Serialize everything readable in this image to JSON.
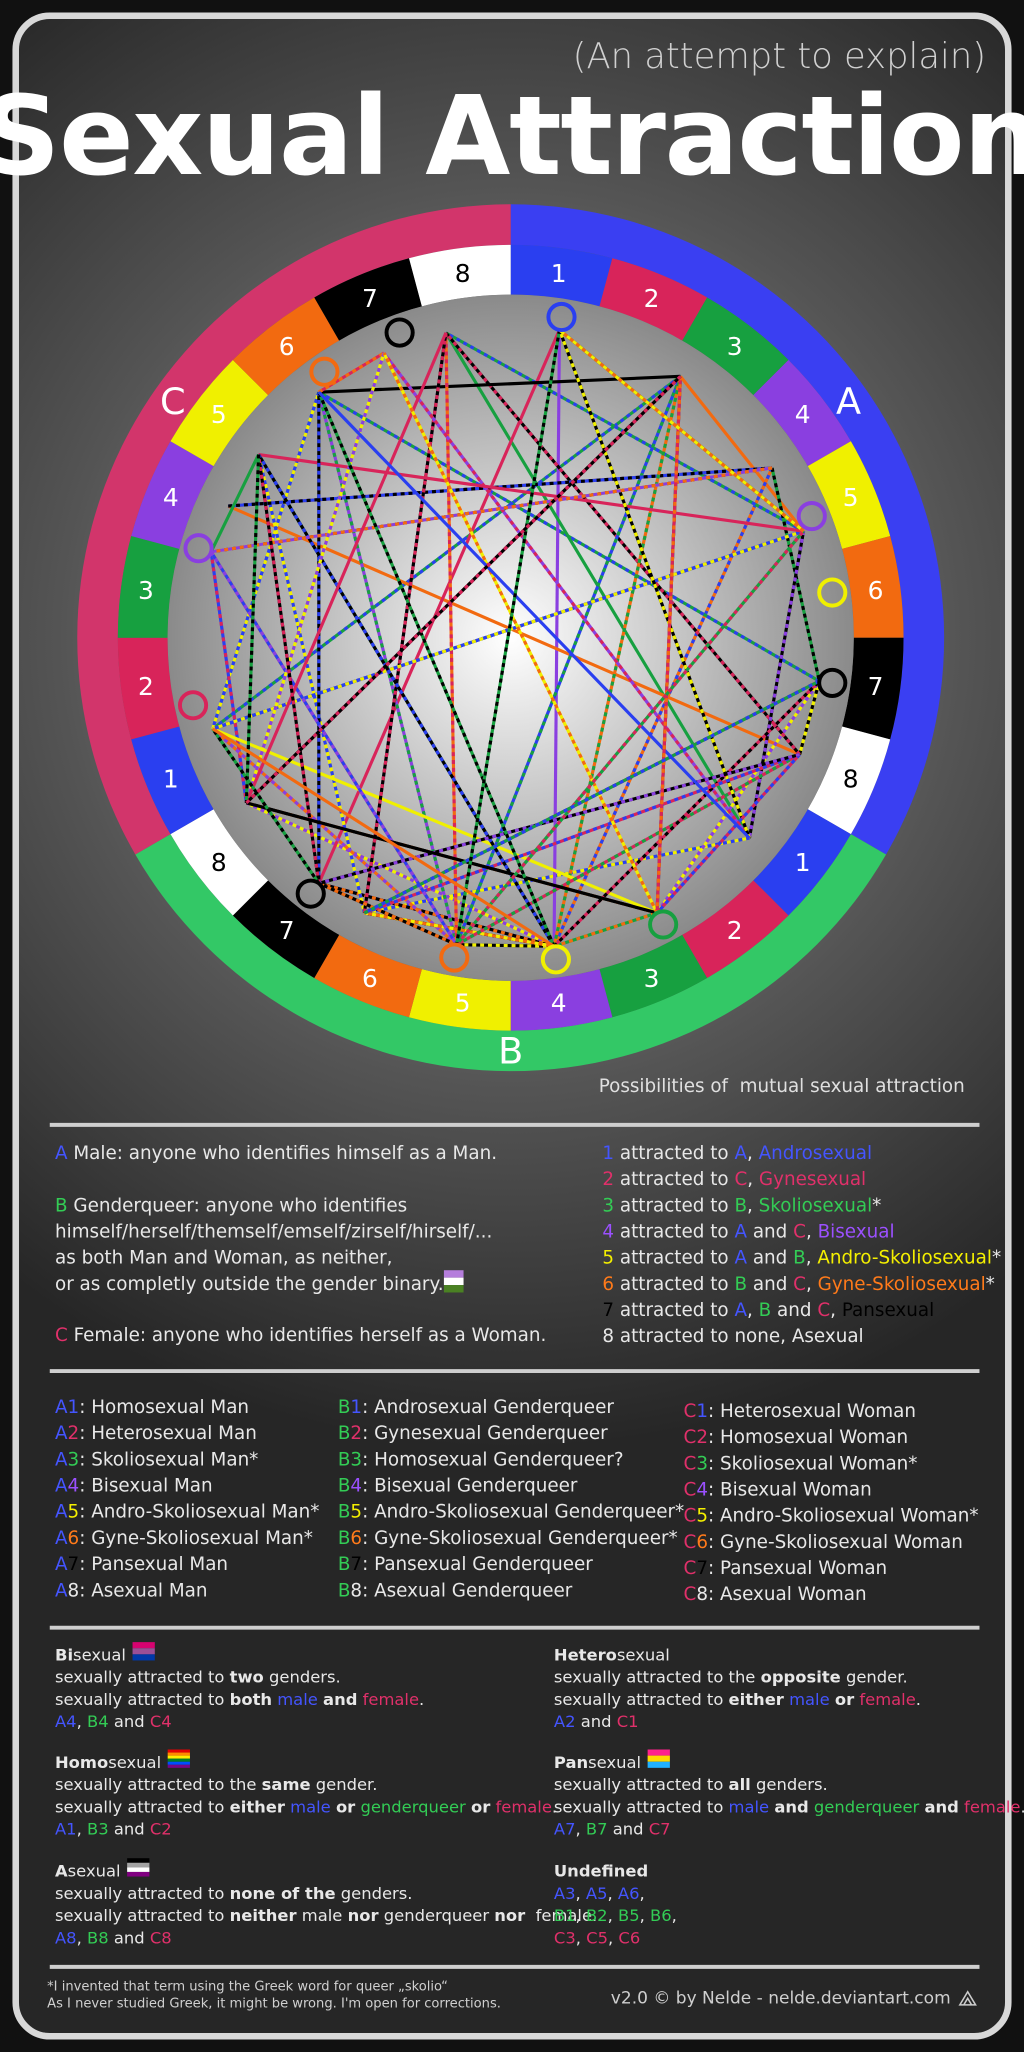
{
  "header": {
    "subtitle": "(An attempt to explain)",
    "title": "Sexual Attraction"
  },
  "palette": {
    "w": "#e8e8e8",
    "a": "#4455ff",
    "b": "#33cc55",
    "c": "#e0306a",
    "p": "#9b50ff",
    "y": "#f5f000",
    "o": "#ff7a1a",
    "k": "#000000"
  },
  "wheel": {
    "sections": [
      {
        "letter": "A",
        "color": "#3a3ff2"
      },
      {
        "letter": "B",
        "color": "#33c866"
      },
      {
        "letter": "C",
        "color": "#d2356b"
      }
    ],
    "segments": [
      {
        "label": "1",
        "color": "#2a3ff0"
      },
      {
        "label": "2",
        "color": "#d8245a"
      },
      {
        "label": "3",
        "color": "#17a040"
      },
      {
        "label": "4",
        "color": "#8a3fe0"
      },
      {
        "label": "5",
        "color": "#f0f000"
      },
      {
        "label": "6",
        "color": "#f26a10"
      },
      {
        "label": "7",
        "color": "#000000"
      },
      {
        "label": "8",
        "color": "#ffffff"
      }
    ],
    "caption": "Possibilities of  mutual sexual attraction"
  },
  "definitions": {
    "lines": [
      [
        [
          "A",
          "a"
        ],
        [
          " Male: anyone who identifies himself as a Man.",
          "w"
        ]
      ],
      [
        [
          "B",
          "b"
        ],
        [
          " Genderqueer: anyone who identifies",
          "w"
        ]
      ],
      [
        [
          "himself/herself/themself/emself/zirself/hirself/...",
          "w"
        ]
      ],
      [
        [
          "as both Man and Woman, as neither,",
          "w"
        ]
      ],
      [
        [
          "or as completly outside the gender binary.",
          "w"
        ]
      ],
      [
        [
          "C",
          "c"
        ],
        [
          " Female: anyone who identifies herself as a Woman.",
          "w"
        ]
      ]
    ],
    "flag": [
      "#b57edc",
      "#ffffff",
      "#4a8123"
    ]
  },
  "legend": [
    [
      [
        "1",
        "a"
      ],
      [
        " attracted to ",
        "w"
      ],
      [
        "A",
        "a"
      ],
      [
        ", ",
        "w"
      ],
      [
        "Androsexual",
        "a"
      ]
    ],
    [
      [
        "2",
        "c"
      ],
      [
        " attracted to ",
        "w"
      ],
      [
        "C",
        "c"
      ],
      [
        ", ",
        "w"
      ],
      [
        "Gynesexual",
        "c"
      ]
    ],
    [
      [
        "3",
        "b"
      ],
      [
        " attracted to ",
        "w"
      ],
      [
        "B",
        "b"
      ],
      [
        ", ",
        "w"
      ],
      [
        "Skoliosexual",
        "b"
      ],
      [
        "*",
        "w"
      ]
    ],
    [
      [
        "4",
        "p"
      ],
      [
        " attracted to ",
        "w"
      ],
      [
        "A",
        "a"
      ],
      [
        " and ",
        "w"
      ],
      [
        "C",
        "c"
      ],
      [
        ", ",
        "w"
      ],
      [
        "Bisexual",
        "p"
      ]
    ],
    [
      [
        "5",
        "y"
      ],
      [
        " attracted to ",
        "w"
      ],
      [
        "A",
        "a"
      ],
      [
        " and ",
        "w"
      ],
      [
        "B",
        "b"
      ],
      [
        ", ",
        "w"
      ],
      [
        "Andro-Skoliosexual",
        "y"
      ],
      [
        "*",
        "w"
      ]
    ],
    [
      [
        "6",
        "o"
      ],
      [
        " attracted to ",
        "w"
      ],
      [
        "B",
        "b"
      ],
      [
        " and ",
        "w"
      ],
      [
        "C",
        "c"
      ],
      [
        ", ",
        "w"
      ],
      [
        "Gyne-Skoliosexual",
        "o"
      ],
      [
        "*",
        "w"
      ]
    ],
    [
      [
        "7",
        "k"
      ],
      [
        " attracted to ",
        "w"
      ],
      [
        "A",
        "a"
      ],
      [
        ", ",
        "w"
      ],
      [
        "B",
        "b"
      ],
      [
        " and ",
        "w"
      ],
      [
        "C",
        "c"
      ],
      [
        ", ",
        "w"
      ],
      [
        "Pansexual",
        "k"
      ]
    ],
    [
      [
        "8",
        "w"
      ],
      [
        " attracted to none, ",
        "w"
      ],
      [
        "Asexual",
        "w"
      ]
    ]
  ],
  "types": [
    [
      [
        [
          "A",
          "a"
        ],
        [
          "1",
          "a"
        ],
        [
          ": Homosexual Man",
          "w"
        ]
      ],
      [
        [
          "A",
          "a"
        ],
        [
          "2",
          "c"
        ],
        [
          ": Heterosexual Man",
          "w"
        ]
      ],
      [
        [
          "A",
          "a"
        ],
        [
          "3",
          "b"
        ],
        [
          ": Skoliosexual Man*",
          "w"
        ]
      ],
      [
        [
          "A",
          "a"
        ],
        [
          "4",
          "p"
        ],
        [
          ": Bisexual Man",
          "w"
        ]
      ],
      [
        [
          "A",
          "a"
        ],
        [
          "5",
          "y"
        ],
        [
          ": Andro-Skoliosexual Man*",
          "w"
        ]
      ],
      [
        [
          "A",
          "a"
        ],
        [
          "6",
          "o"
        ],
        [
          ": Gyne-Skoliosexual Man*",
          "w"
        ]
      ],
      [
        [
          "A",
          "a"
        ],
        [
          "7",
          "k"
        ],
        [
          ": Pansexual Man",
          "w"
        ]
      ],
      [
        [
          "A",
          "a"
        ],
        [
          "8",
          "w"
        ],
        [
          ": Asexual Man",
          "w"
        ]
      ]
    ],
    [
      [
        [
          "B",
          "b"
        ],
        [
          "1",
          "a"
        ],
        [
          ": Androsexual Genderqueer",
          "w"
        ]
      ],
      [
        [
          "B",
          "b"
        ],
        [
          "2",
          "c"
        ],
        [
          ": Gynesexual Genderqueer",
          "w"
        ]
      ],
      [
        [
          "B",
          "b"
        ],
        [
          "3",
          "b"
        ],
        [
          ": Homosexual Genderqueer?",
          "w"
        ]
      ],
      [
        [
          "B",
          "b"
        ],
        [
          "4",
          "p"
        ],
        [
          ": Bisexual Genderqueer",
          "w"
        ]
      ],
      [
        [
          "B",
          "b"
        ],
        [
          "5",
          "y"
        ],
        [
          ": Andro-Skoliosexual Genderqueer*",
          "w"
        ]
      ],
      [
        [
          "B",
          "b"
        ],
        [
          "6",
          "o"
        ],
        [
          ": Gyne-Skoliosexual Genderqueer*",
          "w"
        ]
      ],
      [
        [
          "B",
          "b"
        ],
        [
          "7",
          "k"
        ],
        [
          ": Pansexual Genderqueer",
          "w"
        ]
      ],
      [
        [
          "B",
          "b"
        ],
        [
          "8",
          "w"
        ],
        [
          ": Asexual Genderqueer",
          "w"
        ]
      ]
    ],
    [
      [
        [
          "C",
          "c"
        ],
        [
          "1",
          "a"
        ],
        [
          ": Heterosexual Woman",
          "w"
        ]
      ],
      [
        [
          "C",
          "c"
        ],
        [
          "2",
          "c"
        ],
        [
          ": Homosexual Woman",
          "w"
        ]
      ],
      [
        [
          "C",
          "c"
        ],
        [
          "3",
          "b"
        ],
        [
          ": Skoliosexual Woman*",
          "w"
        ]
      ],
      [
        [
          "C",
          "c"
        ],
        [
          "4",
          "p"
        ],
        [
          ": Bisexual Woman",
          "w"
        ]
      ],
      [
        [
          "C",
          "c"
        ],
        [
          "5",
          "y"
        ],
        [
          ": Andro-Skoliosexual Woman*",
          "w"
        ]
      ],
      [
        [
          "C",
          "c"
        ],
        [
          "6",
          "o"
        ],
        [
          ": Gyne-Skoliosexual Woman",
          "w"
        ]
      ],
      [
        [
          "C",
          "c"
        ],
        [
          "7",
          "k"
        ],
        [
          ": Pansexual Woman",
          "w"
        ]
      ],
      [
        [
          "C",
          "c"
        ],
        [
          "8",
          "w"
        ],
        [
          ": Asexual Woman",
          "w"
        ]
      ]
    ]
  ],
  "categories": [
    {
      "heading": [
        [
          "Bi",
          "w",
          true
        ],
        [
          "sexual",
          "w"
        ]
      ],
      "flag": [
        "#d60270",
        "#9b4f96",
        "#0038a8"
      ],
      "lines": [
        [
          [
            "sexually attracted to ",
            "w"
          ],
          [
            "two",
            "w",
            true
          ],
          [
            " genders.",
            "w"
          ]
        ],
        [
          [
            "sexually attracted to ",
            "w"
          ],
          [
            "both",
            "w",
            true
          ],
          [
            " ",
            "w"
          ],
          [
            "male",
            "a"
          ],
          [
            " ",
            "w"
          ],
          [
            "and",
            "w",
            true
          ],
          [
            " ",
            "w"
          ],
          [
            "female",
            "c"
          ],
          [
            ".",
            "w"
          ]
        ],
        [
          [
            "A4",
            "a"
          ],
          [
            ", ",
            "w"
          ],
          [
            "B4",
            "b"
          ],
          [
            " and ",
            "w"
          ],
          [
            "C4",
            "c"
          ]
        ]
      ]
    },
    {
      "heading": [
        [
          "Homo",
          "w",
          true
        ],
        [
          "sexual",
          "w"
        ]
      ],
      "flag": [
        "#e40303",
        "#ff8c00",
        "#ffed00",
        "#008026",
        "#004dff",
        "#750787"
      ],
      "lines": [
        [
          [
            "sexually attracted to the ",
            "w"
          ],
          [
            "same",
            "w",
            true
          ],
          [
            " gender.",
            "w"
          ]
        ],
        [
          [
            "sexually attracted to ",
            "w"
          ],
          [
            "either",
            "w",
            true
          ],
          [
            " ",
            "w"
          ],
          [
            "male",
            "a"
          ],
          [
            " ",
            "w"
          ],
          [
            "or",
            "w",
            true
          ],
          [
            " ",
            "w"
          ],
          [
            "genderqueer",
            "b"
          ],
          [
            " ",
            "w"
          ],
          [
            "or",
            "w",
            true
          ],
          [
            " ",
            "w"
          ],
          [
            "female",
            "c"
          ],
          [
            ".",
            "w"
          ]
        ],
        [
          [
            "A1",
            "a"
          ],
          [
            ", ",
            "w"
          ],
          [
            "B3",
            "b"
          ],
          [
            " and ",
            "w"
          ],
          [
            "C2",
            "c"
          ]
        ]
      ]
    },
    {
      "heading": [
        [
          "A",
          "w",
          true
        ],
        [
          "sexual",
          "w"
        ]
      ],
      "flag": [
        "#000000",
        "#a3a3a3",
        "#ffffff",
        "#800080"
      ],
      "lines": [
        [
          [
            "sexually attracted to ",
            "w"
          ],
          [
            "none of the",
            "w",
            true
          ],
          [
            " genders.",
            "w"
          ]
        ],
        [
          [
            "sexually attracted to ",
            "w"
          ],
          [
            "neither",
            "w",
            true
          ],
          [
            " male ",
            "w"
          ],
          [
            "nor",
            "w",
            true
          ],
          [
            " genderqueer ",
            "w"
          ],
          [
            "nor",
            "w",
            true
          ],
          [
            "  female.",
            "w"
          ]
        ],
        [
          [
            "A8",
            "a"
          ],
          [
            ", ",
            "w"
          ],
          [
            "B8",
            "b"
          ],
          [
            " and ",
            "w"
          ],
          [
            "C8",
            "c"
          ]
        ]
      ]
    },
    {
      "heading": [
        [
          "Hetero",
          "w",
          true
        ],
        [
          "sexual",
          "w"
        ]
      ],
      "lines": [
        [
          [
            "sexually attracted to the ",
            "w"
          ],
          [
            "opposite",
            "w",
            true
          ],
          [
            " gender.",
            "w"
          ]
        ],
        [
          [
            "sexually attracted to ",
            "w"
          ],
          [
            "either",
            "w",
            true
          ],
          [
            " ",
            "w"
          ],
          [
            "male",
            "a"
          ],
          [
            " ",
            "w"
          ],
          [
            "or",
            "w",
            true
          ],
          [
            " ",
            "w"
          ],
          [
            "female",
            "c"
          ],
          [
            ".",
            "w"
          ]
        ],
        [
          [
            "A2",
            "a"
          ],
          [
            " and ",
            "w"
          ],
          [
            "C1",
            "c"
          ]
        ]
      ]
    },
    {
      "heading": [
        [
          "Pan",
          "w",
          true
        ],
        [
          "sexual",
          "w"
        ]
      ],
      "flag": [
        "#ff218c",
        "#ffd800",
        "#21b1ff"
      ],
      "lines": [
        [
          [
            "sexually attracted to ",
            "w"
          ],
          [
            "all",
            "w",
            true
          ],
          [
            " genders.",
            "w"
          ]
        ],
        [
          [
            "sexually attracted to ",
            "w"
          ],
          [
            "male",
            "a"
          ],
          [
            " ",
            "w"
          ],
          [
            "and",
            "w",
            true
          ],
          [
            " ",
            "w"
          ],
          [
            "genderqueer",
            "b"
          ],
          [
            " ",
            "w"
          ],
          [
            "and",
            "w",
            true
          ],
          [
            " ",
            "w"
          ],
          [
            "female",
            "c"
          ],
          [
            ".",
            "w"
          ]
        ],
        [
          [
            "A7",
            "a"
          ],
          [
            ", ",
            "w"
          ],
          [
            "B7",
            "b"
          ],
          [
            " and ",
            "w"
          ],
          [
            "C7",
            "c"
          ]
        ]
      ]
    },
    {
      "heading": [
        [
          "Undefined",
          "w",
          true
        ]
      ],
      "lines": [
        [
          [
            "A3",
            "a"
          ],
          [
            ", ",
            "w"
          ],
          [
            "A5",
            "a"
          ],
          [
            ", ",
            "w"
          ],
          [
            "A6",
            "a"
          ],
          [
            ",",
            "w"
          ]
        ],
        [
          [
            "B1",
            "b"
          ],
          [
            ", ",
            "w"
          ],
          [
            "B2",
            "b"
          ],
          [
            ", ",
            "w"
          ],
          [
            "B5",
            "b"
          ],
          [
            ", ",
            "w"
          ],
          [
            "B6",
            "b"
          ],
          [
            ",",
            "w"
          ]
        ],
        [
          [
            "C3",
            "c"
          ],
          [
            ", ",
            "w"
          ],
          [
            "C5",
            "c"
          ],
          [
            ", ",
            "w"
          ],
          [
            "C6",
            "c"
          ]
        ]
      ]
    }
  ],
  "footnote": [
    "*I invented that term using the Greek word for queer „skolio“",
    "As I never studied Greek, it might be wrong. I'm open for corrections."
  ],
  "credit": "v2.0 © by Nelde - nelde.deviantart.com"
}
